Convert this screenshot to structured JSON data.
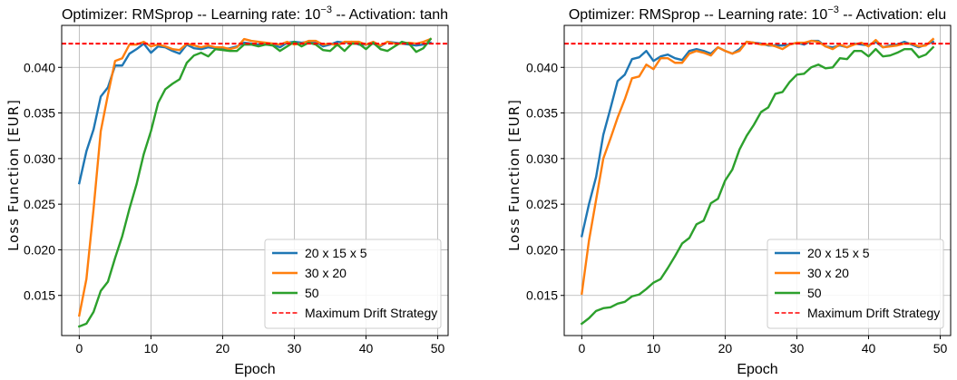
{
  "chart_data": [
    {
      "type": "line",
      "title_pre": "Optimizer: RMSprop -- Learning rate: 10",
      "title_exp": "−3",
      "title_post": " -- Activation: tanh",
      "xlabel": "Epoch",
      "ylabel": "Loss Function [EUR]",
      "xlim": [
        -2.45,
        51.45
      ],
      "ylim": [
        0.0106,
        0.0446
      ],
      "xticks": [
        0,
        10,
        20,
        30,
        40,
        50
      ],
      "yticks": [
        0.015,
        0.02,
        0.025,
        0.03,
        0.035,
        0.04
      ],
      "ytick_labels": [
        "0.015",
        "0.020",
        "0.025",
        "0.030",
        "0.035",
        "0.040"
      ],
      "grid": true,
      "legend_position": "lower right",
      "hline": {
        "name": "Maximum Drift Strategy",
        "value": 0.0426,
        "color": "#ff0000",
        "style": "dashed"
      },
      "series": [
        {
          "name": "20 x 15 x 5",
          "color": "#1f77b4",
          "x": [
            0,
            1,
            2,
            3,
            4,
            5,
            6,
            7,
            8,
            9,
            10,
            11,
            12,
            13,
            14,
            15,
            16,
            17,
            18,
            19,
            20,
            21,
            22,
            23,
            24,
            25,
            26,
            27,
            28,
            29,
            30,
            31,
            32,
            33,
            34,
            35,
            36,
            37,
            38,
            39,
            40,
            41,
            42,
            43,
            44,
            45,
            46,
            47,
            48,
            49
          ],
          "values": [
            0.0273,
            0.0308,
            0.0332,
            0.0368,
            0.0378,
            0.0402,
            0.0402,
            0.0415,
            0.042,
            0.0426,
            0.0416,
            0.0423,
            0.0422,
            0.0418,
            0.0415,
            0.0425,
            0.0421,
            0.042,
            0.0422,
            0.0421,
            0.042,
            0.0421,
            0.0423,
            0.0427,
            0.0426,
            0.0425,
            0.0425,
            0.0425,
            0.0422,
            0.0427,
            0.0428,
            0.0427,
            0.0428,
            0.0428,
            0.0423,
            0.0425,
            0.0428,
            0.0427,
            0.0428,
            0.0425,
            0.0425,
            0.0426,
            0.0423,
            0.0428,
            0.0427,
            0.0426,
            0.0425,
            0.0424,
            0.0425,
            0.0427
          ]
        },
        {
          "name": "30 x 20",
          "color": "#ff7f0e",
          "x": [
            0,
            1,
            2,
            3,
            4,
            5,
            6,
            7,
            8,
            9,
            10,
            11,
            12,
            13,
            14,
            15,
            16,
            17,
            18,
            19,
            20,
            21,
            22,
            23,
            24,
            25,
            26,
            27,
            28,
            29,
            30,
            31,
            32,
            33,
            34,
            35,
            36,
            37,
            38,
            39,
            40,
            41,
            42,
            43,
            44,
            45,
            46,
            47,
            48,
            49
          ],
          "values": [
            0.0128,
            0.0168,
            0.0245,
            0.033,
            0.037,
            0.0407,
            0.041,
            0.0425,
            0.0425,
            0.0428,
            0.0423,
            0.0425,
            0.0423,
            0.042,
            0.0419,
            0.0426,
            0.0424,
            0.0422,
            0.0424,
            0.0422,
            0.0422,
            0.042,
            0.0422,
            0.0431,
            0.0429,
            0.0428,
            0.0427,
            0.0426,
            0.0425,
            0.0428,
            0.0425,
            0.0426,
            0.0429,
            0.0429,
            0.0425,
            0.0426,
            0.0424,
            0.0428,
            0.0428,
            0.0428,
            0.0425,
            0.0428,
            0.0424,
            0.0428,
            0.0426,
            0.0426,
            0.0427,
            0.0426,
            0.0428,
            0.0431
          ]
        },
        {
          "name": "50",
          "color": "#2ca02c",
          "x": [
            0,
            1,
            2,
            3,
            4,
            5,
            6,
            7,
            8,
            9,
            10,
            11,
            12,
            13,
            14,
            15,
            16,
            17,
            18,
            19,
            20,
            21,
            22,
            23,
            24,
            25,
            26,
            27,
            28,
            29,
            30,
            31,
            32,
            33,
            34,
            35,
            36,
            37,
            38,
            39,
            40,
            41,
            42,
            43,
            44,
            45,
            46,
            47,
            48,
            49
          ],
          "values": [
            0.0116,
            0.0119,
            0.0132,
            0.0155,
            0.0165,
            0.0191,
            0.0215,
            0.0245,
            0.0272,
            0.0305,
            0.033,
            0.0361,
            0.0376,
            0.0382,
            0.0387,
            0.0405,
            0.0413,
            0.0416,
            0.0412,
            0.042,
            0.0419,
            0.0418,
            0.0418,
            0.0425,
            0.0425,
            0.0423,
            0.0425,
            0.0424,
            0.0418,
            0.0423,
            0.0428,
            0.0423,
            0.0427,
            0.0425,
            0.0419,
            0.0418,
            0.0425,
            0.0418,
            0.0426,
            0.0426,
            0.042,
            0.0427,
            0.042,
            0.0418,
            0.0423,
            0.0428,
            0.0426,
            0.0417,
            0.0421,
            0.0431
          ]
        }
      ]
    },
    {
      "type": "line",
      "title_pre": "Optimizer: RMSprop -- Learning rate: 10",
      "title_exp": "−3",
      "title_post": " -- Activation: elu",
      "xlabel": "Epoch",
      "ylabel": "Loss Function [EUR]",
      "xlim": [
        -2.45,
        51.45
      ],
      "ylim": [
        0.0106,
        0.0446
      ],
      "xticks": [
        0,
        10,
        20,
        30,
        40,
        50
      ],
      "yticks": [
        0.015,
        0.02,
        0.025,
        0.03,
        0.035,
        0.04
      ],
      "ytick_labels": [
        "0.015",
        "0.020",
        "0.025",
        "0.030",
        "0.035",
        "0.040"
      ],
      "grid": true,
      "legend_position": "lower right",
      "hline": {
        "name": "Maximum Drift Strategy",
        "value": 0.0426,
        "color": "#ff0000",
        "style": "dashed"
      },
      "series": [
        {
          "name": "20 x 15 x 5",
          "color": "#1f77b4",
          "x": [
            0,
            1,
            2,
            3,
            4,
            5,
            6,
            7,
            8,
            9,
            10,
            11,
            12,
            13,
            14,
            15,
            16,
            17,
            18,
            19,
            20,
            21,
            22,
            23,
            24,
            25,
            26,
            27,
            28,
            29,
            30,
            31,
            32,
            33,
            34,
            35,
            36,
            37,
            38,
            39,
            40,
            41,
            42,
            43,
            44,
            45,
            46,
            47,
            48,
            49
          ],
          "values": [
            0.0215,
            0.025,
            0.028,
            0.0326,
            0.0355,
            0.0385,
            0.0392,
            0.0409,
            0.0411,
            0.0418,
            0.0407,
            0.0412,
            0.0414,
            0.041,
            0.0408,
            0.0418,
            0.042,
            0.0418,
            0.0415,
            0.0422,
            0.0418,
            0.0415,
            0.042,
            0.0428,
            0.0427,
            0.0426,
            0.0424,
            0.0424,
            0.0424,
            0.0425,
            0.0427,
            0.0425,
            0.0429,
            0.0429,
            0.0423,
            0.0422,
            0.0424,
            0.0422,
            0.0426,
            0.0425,
            0.0424,
            0.0428,
            0.0422,
            0.0424,
            0.0425,
            0.0428,
            0.0425,
            0.0422,
            0.0425,
            0.0428
          ]
        },
        {
          "name": "30 x 20",
          "color": "#ff7f0e",
          "x": [
            0,
            1,
            2,
            3,
            4,
            5,
            6,
            7,
            8,
            9,
            10,
            11,
            12,
            13,
            14,
            15,
            16,
            17,
            18,
            19,
            20,
            21,
            22,
            23,
            24,
            25,
            26,
            27,
            28,
            29,
            30,
            31,
            32,
            33,
            34,
            35,
            36,
            37,
            38,
            39,
            40,
            41,
            42,
            43,
            44,
            45,
            46,
            47,
            48,
            49
          ],
          "values": [
            0.0152,
            0.021,
            0.0255,
            0.03,
            0.0322,
            0.0345,
            0.0365,
            0.0388,
            0.039,
            0.0403,
            0.0398,
            0.041,
            0.041,
            0.0405,
            0.0405,
            0.0415,
            0.0418,
            0.0416,
            0.0413,
            0.0422,
            0.0418,
            0.0415,
            0.0418,
            0.0428,
            0.0427,
            0.0425,
            0.0425,
            0.0423,
            0.042,
            0.0425,
            0.0427,
            0.0427,
            0.0429,
            0.0428,
            0.0423,
            0.042,
            0.0425,
            0.0422,
            0.0425,
            0.0427,
            0.0423,
            0.043,
            0.0422,
            0.0423,
            0.0424,
            0.0426,
            0.0426,
            0.0423,
            0.0424,
            0.0431
          ]
        },
        {
          "name": "50",
          "color": "#2ca02c",
          "x": [
            0,
            1,
            2,
            3,
            4,
            5,
            6,
            7,
            8,
            9,
            10,
            11,
            12,
            13,
            14,
            15,
            16,
            17,
            18,
            19,
            20,
            21,
            22,
            23,
            24,
            25,
            26,
            27,
            28,
            29,
            30,
            31,
            32,
            33,
            34,
            35,
            36,
            37,
            38,
            39,
            40,
            41,
            42,
            43,
            44,
            45,
            46,
            47,
            48,
            49
          ],
          "values": [
            0.0119,
            0.0125,
            0.0133,
            0.0136,
            0.0137,
            0.0141,
            0.0143,
            0.0149,
            0.0151,
            0.0157,
            0.0164,
            0.0168,
            0.018,
            0.0193,
            0.0207,
            0.0213,
            0.0228,
            0.0232,
            0.0251,
            0.0256,
            0.0276,
            0.0288,
            0.031,
            0.0325,
            0.0337,
            0.0351,
            0.0356,
            0.0371,
            0.0373,
            0.0384,
            0.0392,
            0.0393,
            0.04,
            0.0403,
            0.0399,
            0.04,
            0.041,
            0.0409,
            0.0418,
            0.0418,
            0.0412,
            0.042,
            0.0412,
            0.0413,
            0.0416,
            0.042,
            0.042,
            0.0411,
            0.0414,
            0.0422
          ]
        }
      ]
    }
  ]
}
